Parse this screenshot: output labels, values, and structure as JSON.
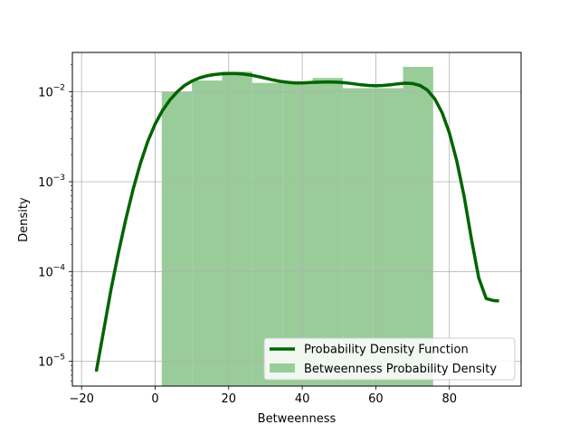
{
  "chart_data": {
    "type": "bar",
    "xlabel": "Betweenness",
    "ylabel": "Density",
    "xlim": [
      -22.5,
      99.5
    ],
    "ylim": [
      5.3e-06,
      0.0275
    ],
    "y_scale": "log",
    "grid": true,
    "legend_position": "lower right",
    "x_ticks": [
      -20,
      0,
      20,
      40,
      60,
      80
    ],
    "y_ticks": [
      {
        "value": 1e-05,
        "base": "10",
        "exp": "−5"
      },
      {
        "value": 0.0001,
        "base": "10",
        "exp": "−4"
      },
      {
        "value": 0.001,
        "base": "10",
        "exp": "−3"
      },
      {
        "value": 0.01,
        "base": "10",
        "exp": "−2"
      }
    ],
    "histogram": {
      "name": "Betweenness Probability Density",
      "color": "#99cc99",
      "bins": [
        {
          "x0": 1.8,
          "x1": 10.0,
          "density": 0.0101
        },
        {
          "x0": 10.0,
          "x1": 18.2,
          "density": 0.0134
        },
        {
          "x0": 18.2,
          "x1": 26.4,
          "density": 0.0168
        },
        {
          "x0": 26.4,
          "x1": 34.6,
          "density": 0.0126
        },
        {
          "x0": 34.6,
          "x1": 42.8,
          "density": 0.0126
        },
        {
          "x0": 42.8,
          "x1": 51.0,
          "density": 0.0143
        },
        {
          "x0": 51.0,
          "x1": 59.2,
          "density": 0.011
        },
        {
          "x0": 59.2,
          "x1": 67.4,
          "density": 0.011
        },
        {
          "x0": 67.4,
          "x1": 75.6,
          "density": 0.019
        }
      ]
    },
    "series": [
      {
        "name": "Probability Density Function",
        "color": "#006400",
        "x": [
          -16,
          -14,
          -12,
          -10,
          -8,
          -6,
          -4,
          -2,
          0,
          2,
          4,
          6,
          8,
          10,
          12,
          14,
          16,
          18,
          20,
          22,
          24,
          26,
          28,
          30,
          32,
          34,
          36,
          38,
          40,
          42,
          44,
          46,
          48,
          50,
          52,
          54,
          56,
          58,
          60,
          62,
          64,
          66,
          68,
          70,
          72,
          74,
          76,
          78,
          80,
          82,
          84,
          86,
          88,
          90,
          92,
          93.5
        ],
        "y": [
          7.7e-06,
          2.2e-05,
          6.3e-05,
          0.00016,
          0.00038,
          0.00082,
          0.0016,
          0.0028,
          0.0044,
          0.0062,
          0.0081,
          0.01,
          0.0118,
          0.0132,
          0.0143,
          0.0151,
          0.0156,
          0.0159,
          0.016,
          0.016,
          0.0158,
          0.0154,
          0.0148,
          0.0142,
          0.0136,
          0.0131,
          0.0128,
          0.0126,
          0.0126,
          0.0127,
          0.0128,
          0.0129,
          0.0129,
          0.0128,
          0.0126,
          0.0123,
          0.012,
          0.0118,
          0.0117,
          0.0118,
          0.012,
          0.0123,
          0.0125,
          0.0124,
          0.0118,
          0.0105,
          0.0084,
          0.0059,
          0.0035,
          0.0017,
          0.00069,
          0.00023,
          8.5e-05,
          5e-05,
          4.75e-05,
          4.7e-05
        ]
      }
    ]
  }
}
